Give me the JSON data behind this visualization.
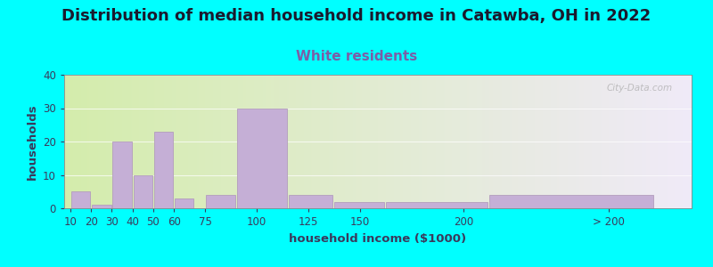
{
  "title": "Distribution of median household income in Catawba, OH in 2022",
  "subtitle": "White residents",
  "xlabel": "household income ($1000)",
  "ylabel": "households",
  "background_color": "#00FFFF",
  "bar_color": "#c5afd6",
  "bar_edge_color": "#b39dbd",
  "title_color": "#1a1a2e",
  "subtitle_color": "#7b5ea7",
  "axis_label_color": "#3a3a5c",
  "tick_color": "#3a3a5c",
  "watermark": "City-Data.com",
  "values": [
    5,
    1,
    20,
    10,
    23,
    3,
    4,
    30,
    4,
    2,
    2,
    4
  ],
  "bar_lefts": [
    10,
    20,
    30,
    40,
    50,
    60,
    75,
    90,
    115,
    137,
    162,
    212
  ],
  "bar_widths": [
    10,
    10,
    10,
    10,
    10,
    10,
    15,
    25,
    22,
    25,
    50,
    80
  ],
  "xtick_positions": [
    10,
    20,
    30,
    40,
    50,
    60,
    75,
    100,
    125,
    150,
    200,
    270
  ],
  "xtick_labels": [
    "10",
    "20",
    "30",
    "40",
    "50",
    "60",
    "75",
    "100",
    "125",
    "150",
    "200",
    "> 200"
  ],
  "xlim_left": 7,
  "xlim_right": 310,
  "ylim": [
    0,
    40
  ],
  "yticks": [
    0,
    10,
    20,
    30,
    40
  ],
  "title_fontsize": 13,
  "subtitle_fontsize": 11,
  "label_fontsize": 9.5,
  "tick_fontsize": 8.5,
  "gradient_left_color": "#d4edac",
  "gradient_right_color": "#f0eaf8"
}
